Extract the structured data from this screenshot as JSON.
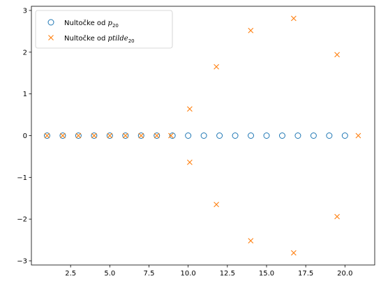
{
  "chart_data": {
    "type": "scatter",
    "xlim": [
      0.0,
      21.9
    ],
    "ylim": [
      -3.1,
      3.1
    ],
    "xticks": [
      2.5,
      5.0,
      7.5,
      10.0,
      12.5,
      15.0,
      17.5,
      20.0
    ],
    "xtick_labels": [
      "2.5",
      "5.0",
      "7.5",
      "10.0",
      "12.5",
      "15.0",
      "17.5",
      "20.0"
    ],
    "yticks": [
      -3,
      -2,
      -1,
      0,
      1,
      2,
      3
    ],
    "ytick_labels": [
      "−3",
      "−2",
      "−1",
      "0",
      "1",
      "2",
      "3"
    ],
    "legend_position": "upper-left",
    "grid": false,
    "series": [
      {
        "name": "Nultočke od p20",
        "legend_base": "Nultočke od ",
        "legend_math": "p",
        "legend_sub": "20",
        "marker": "circle-open",
        "color": "#1f77b4",
        "x": [
          1,
          2,
          3,
          4,
          5,
          6,
          7,
          8,
          9,
          10,
          11,
          12,
          13,
          14,
          15,
          16,
          17,
          18,
          19,
          20
        ],
        "y": [
          0,
          0,
          0,
          0,
          0,
          0,
          0,
          0,
          0,
          0,
          0,
          0,
          0,
          0,
          0,
          0,
          0,
          0,
          0,
          0
        ]
      },
      {
        "name": "Nultočke od ptilde20",
        "legend_base": "Nultočke od ",
        "legend_math": "ptilde",
        "legend_sub": "20",
        "marker": "x",
        "color": "#ff7f0e",
        "x": [
          1,
          2,
          3,
          4,
          5,
          6,
          7,
          8,
          8.9,
          10.1,
          10.1,
          11.8,
          11.8,
          13.99,
          13.99,
          16.73,
          16.73,
          19.5,
          19.5,
          20.85
        ],
        "y": [
          0,
          0,
          0,
          0,
          0,
          0,
          0,
          0,
          0,
          0.64,
          -0.64,
          1.65,
          -1.65,
          2.52,
          -2.52,
          2.81,
          -2.81,
          1.94,
          -1.94,
          0
        ]
      }
    ]
  }
}
